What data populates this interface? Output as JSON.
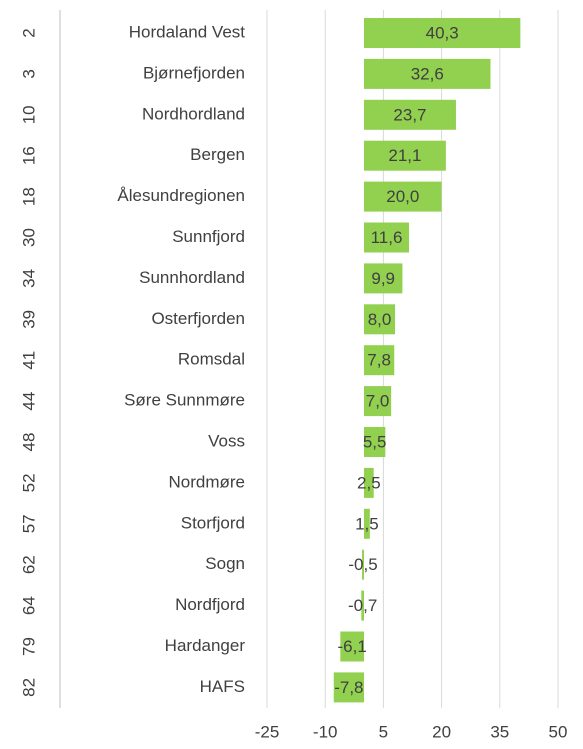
{
  "chart_data": {
    "type": "hbar",
    "ranks": [
      2,
      3,
      10,
      16,
      18,
      30,
      34,
      39,
      41,
      44,
      48,
      52,
      57,
      62,
      64,
      79,
      82
    ],
    "categories": [
      "Hordaland Vest",
      "Bjørnefjorden",
      "Nordhordland",
      "Bergen",
      "Ålesundregionen",
      "Sunnfjord",
      "Sunnhordland",
      "Osterfjorden",
      "Romsdal",
      "Søre Sunnmøre",
      "Voss",
      "Nordmøre",
      "Storfjord",
      "Sogn",
      "Nordfjord",
      "Hardanger",
      "HAFS"
    ],
    "values": [
      40.3,
      32.6,
      23.7,
      21.1,
      20.0,
      11.6,
      9.9,
      8.0,
      7.8,
      7.0,
      5.5,
      2.5,
      1.5,
      -0.5,
      -0.7,
      -6.1,
      -7.8
    ],
    "value_labels": [
      "40,3",
      "32,6",
      "23,7",
      "21,1",
      "20,0",
      "11,6",
      "9,9",
      "8,0",
      "7,8",
      "7,0",
      "5,5",
      "2,5",
      "1,5",
      "-0,5",
      "-0,7",
      "-6,1",
      "-7,8"
    ],
    "color": "#92d050",
    "xlim": [
      -25,
      50
    ],
    "xticks": [
      -25,
      -10,
      5,
      20,
      35,
      50
    ],
    "grid": true
  }
}
